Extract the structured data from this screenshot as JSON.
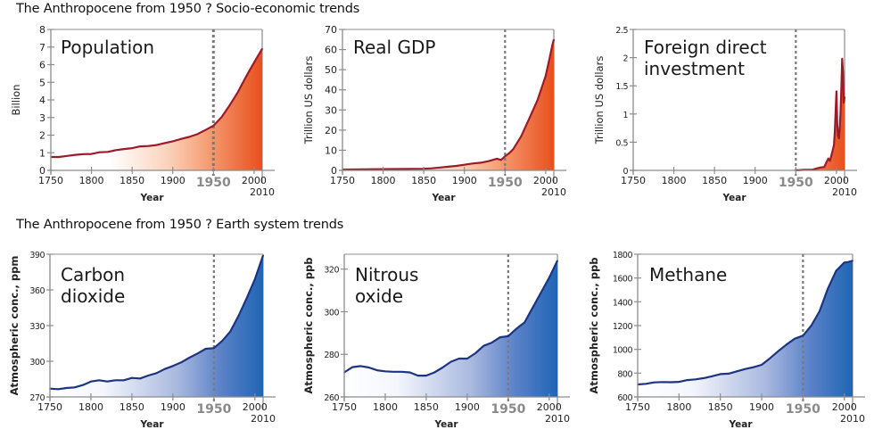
{
  "sections": [
    {
      "title": "The Anthropocene from 1950 ? Socio-economic trends"
    },
    {
      "title": "The Anthropocene from 1950 ? Earth system trends"
    }
  ],
  "colors": {
    "socio_line": "#9b1b2a",
    "socio_fill_start": "#fde8dc",
    "socio_fill_end": "#e8501c",
    "earth_line": "#1d3480",
    "earth_fill_start": "#ffffff",
    "earth_fill_end": "#1f65b5",
    "marker_line": "#7a7a7a",
    "axis": "#8c8c8c"
  },
  "chart_data": [
    {
      "type": "area",
      "section": 0,
      "title_lines": [
        "Population"
      ],
      "xlabel": "Year",
      "ylabel": "Billion",
      "xlim": [
        1750,
        2010
      ],
      "ylim": [
        0,
        8
      ],
      "xticks": [
        1750,
        1800,
        1850,
        1900,
        1950,
        2000
      ],
      "xtick_extra": 2010,
      "highlight_year": 1950,
      "yticks": [
        "0",
        "1",
        "2",
        "3",
        "4",
        "5",
        "6",
        "7",
        "8"
      ],
      "ytick_values": [
        0,
        1,
        2,
        3,
        4,
        5,
        6,
        7,
        8
      ],
      "x": [
        1750,
        1760,
        1770,
        1780,
        1790,
        1800,
        1810,
        1820,
        1830,
        1840,
        1850,
        1860,
        1870,
        1880,
        1890,
        1900,
        1910,
        1920,
        1930,
        1940,
        1950,
        1960,
        1970,
        1980,
        1990,
        2000,
        2010
      ],
      "values": [
        0.76,
        0.76,
        0.82,
        0.88,
        0.92,
        0.93,
        1.03,
        1.05,
        1.15,
        1.21,
        1.26,
        1.36,
        1.38,
        1.44,
        1.55,
        1.65,
        1.78,
        1.9,
        2.05,
        2.29,
        2.53,
        3.02,
        3.69,
        4.44,
        5.31,
        6.12,
        6.9
      ]
    },
    {
      "type": "area",
      "section": 0,
      "title_lines": [
        "Real GDP"
      ],
      "xlabel": "Year",
      "ylabel": "Trillion US dollars",
      "xlim": [
        1750,
        2010
      ],
      "ylim": [
        0,
        70
      ],
      "xticks": [
        1750,
        1800,
        1850,
        1900,
        1950,
        2000
      ],
      "xtick_extra": 2010,
      "highlight_year": 1950,
      "yticks": [
        "0",
        "10",
        "20",
        "30",
        "40",
        "50",
        "60",
        "70"
      ],
      "ytick_values": [
        0,
        10,
        20,
        30,
        40,
        50,
        60,
        70
      ],
      "x": [
        1750,
        1800,
        1850,
        1860,
        1870,
        1880,
        1890,
        1900,
        1910,
        1920,
        1930,
        1940,
        1945,
        1950,
        1955,
        1960,
        1970,
        1980,
        1990,
        2000,
        2005,
        2008,
        2010
      ],
      "values": [
        0.4,
        0.6,
        0.8,
        1.0,
        1.4,
        1.8,
        2.2,
        2.8,
        3.4,
        3.8,
        4.6,
        5.8,
        5.2,
        7.0,
        8.5,
        10.5,
        17.0,
        26.0,
        35.0,
        47.0,
        56.0,
        62.0,
        65.0
      ]
    },
    {
      "type": "area",
      "section": 0,
      "title_lines": [
        "Foreign direct",
        "investment"
      ],
      "xlabel": "Year",
      "ylabel": "Trillion US dollars",
      "xlim": [
        1750,
        2010
      ],
      "ylim": [
        0,
        2.5
      ],
      "xticks": [
        1750,
        1800,
        1850,
        1900,
        1950,
        2000
      ],
      "xtick_extra": 2010,
      "highlight_year": 1950,
      "yticks": [
        "0",
        "0.5",
        "1",
        "1.5",
        "2",
        "2.5"
      ],
      "ytick_values": [
        0,
        0.5,
        1,
        1.5,
        2,
        2.5
      ],
      "x": [
        1950,
        1960,
        1970,
        1975,
        1980,
        1985,
        1988,
        1990,
        1992,
        1995,
        1997,
        1998,
        2000,
        2001,
        2002,
        2003,
        2004,
        2005,
        2006,
        2007,
        2008,
        2009,
        2010
      ],
      "values": [
        0.0,
        0.01,
        0.01,
        0.03,
        0.05,
        0.06,
        0.15,
        0.21,
        0.17,
        0.33,
        0.45,
        0.7,
        1.4,
        0.82,
        0.62,
        0.57,
        0.73,
        1.0,
        1.45,
        1.98,
        1.75,
        1.2,
        1.3
      ]
    },
    {
      "type": "area",
      "section": 1,
      "title_lines": [
        "Carbon",
        "dioxide"
      ],
      "xlabel": "Year",
      "ylabel": "Atmospheric conc., ppm",
      "xlim": [
        1750,
        2010
      ],
      "ylim": [
        270,
        390
      ],
      "xticks": [
        1750,
        1800,
        1850,
        1900,
        1950,
        2000
      ],
      "xtick_extra": 2010,
      "highlight_year": 1950,
      "yticks": [
        "270",
        "300",
        "330",
        "360",
        "390"
      ],
      "ytick_values": [
        270,
        300,
        330,
        360,
        390
      ],
      "x": [
        1750,
        1760,
        1770,
        1780,
        1790,
        1800,
        1810,
        1820,
        1830,
        1840,
        1850,
        1860,
        1870,
        1880,
        1890,
        1900,
        1910,
        1920,
        1930,
        1940,
        1950,
        1960,
        1970,
        1980,
        1990,
        2000,
        2010
      ],
      "values": [
        277,
        276.5,
        277.5,
        278,
        280,
        283,
        284,
        283,
        284,
        284,
        286,
        285.5,
        288,
        290,
        293.5,
        296,
        299,
        303,
        306.5,
        310.5,
        311,
        317,
        325,
        338,
        353,
        369,
        389
      ]
    },
    {
      "type": "area",
      "section": 1,
      "title_lines": [
        "Nitrous",
        "oxide"
      ],
      "xlabel": "Year",
      "ylabel": "Atmospheric conc., ppb",
      "xlim": [
        1750,
        2010
      ],
      "ylim": [
        260,
        327
      ],
      "xticks": [
        1750,
        1800,
        1850,
        1900,
        1950,
        2000
      ],
      "xtick_extra": 2010,
      "highlight_year": 1950,
      "yticks": [
        "260",
        "280",
        "300",
        "320"
      ],
      "ytick_values": [
        260,
        280,
        300,
        320
      ],
      "x": [
        1750,
        1760,
        1770,
        1780,
        1790,
        1800,
        1810,
        1820,
        1830,
        1840,
        1850,
        1860,
        1870,
        1880,
        1890,
        1900,
        1910,
        1920,
        1930,
        1940,
        1950,
        1960,
        1970,
        1980,
        1990,
        2000,
        2010
      ],
      "values": [
        271.5,
        274,
        274.5,
        273.8,
        272.5,
        272,
        271.8,
        271.8,
        271.5,
        270,
        270,
        271.5,
        273.8,
        276.5,
        278,
        278,
        280.5,
        284,
        285.5,
        288,
        288.5,
        292,
        295,
        302,
        309,
        316,
        324
      ]
    },
    {
      "type": "area",
      "section": 1,
      "title_lines": [
        "Methane"
      ],
      "xlabel": "Year",
      "ylabel": "Atmospheric conc., ppb",
      "xlim": [
        1750,
        2010
      ],
      "ylim": [
        600,
        1800
      ],
      "xticks": [
        1750,
        1800,
        1850,
        1900,
        1950,
        2000
      ],
      "xtick_extra": 2010,
      "highlight_year": 1950,
      "yticks": [
        "600",
        "800",
        "1000",
        "1200",
        "1400",
        "1600",
        "1800"
      ],
      "ytick_values": [
        600,
        800,
        1000,
        1200,
        1400,
        1600,
        1800
      ],
      "x": [
        1750,
        1760,
        1770,
        1780,
        1790,
        1800,
        1810,
        1820,
        1830,
        1840,
        1850,
        1860,
        1870,
        1880,
        1890,
        1900,
        1910,
        1920,
        1930,
        1940,
        1950,
        1960,
        1970,
        1980,
        1990,
        2000,
        2005,
        2010
      ],
      "values": [
        705,
        710,
        722,
        725,
        724,
        727,
        742,
        748,
        758,
        774,
        792,
        796,
        815,
        835,
        850,
        870,
        925,
        985,
        1040,
        1090,
        1115,
        1200,
        1320,
        1510,
        1660,
        1730,
        1735,
        1745
      ]
    }
  ]
}
